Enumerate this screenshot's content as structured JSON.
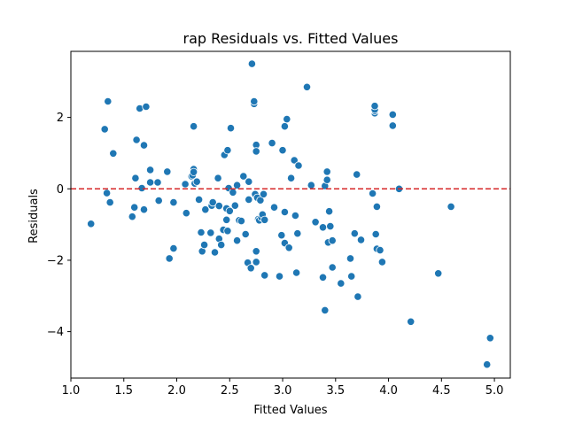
{
  "chart_data": {
    "type": "scatter",
    "title": "rap Residuals vs. Fitted Values",
    "xlabel": "Fitted Values",
    "ylabel": "Residuals",
    "xlim": [
      1.0,
      5.15
    ],
    "ylim": [
      -5.3,
      3.85
    ],
    "xticks": [
      "1.0",
      "1.5",
      "2.0",
      "2.5",
      "3.0",
      "3.5",
      "4.0",
      "4.5",
      "5.0"
    ],
    "yticks": [
      "−4",
      "−2",
      "0",
      "2"
    ],
    "xtick_values": [
      1.0,
      1.5,
      2.0,
      2.5,
      3.0,
      3.5,
      4.0,
      4.5,
      5.0
    ],
    "ytick_values": [
      -4,
      -2,
      0,
      2
    ],
    "reference_line": {
      "y": 0,
      "style": "dashed",
      "color": "#d62728"
    },
    "point_color": "#1f77b4",
    "grid": false,
    "points": [
      [
        1.19,
        -0.98
      ],
      [
        1.32,
        1.67
      ],
      [
        1.34,
        -0.12
      ],
      [
        1.35,
        2.45
      ],
      [
        1.37,
        -0.38
      ],
      [
        1.4,
        0.99
      ],
      [
        1.58,
        -0.78
      ],
      [
        1.6,
        -0.52
      ],
      [
        1.61,
        0.3
      ],
      [
        1.62,
        1.37
      ],
      [
        1.65,
        2.25
      ],
      [
        1.67,
        0.02
      ],
      [
        1.69,
        1.22
      ],
      [
        1.69,
        -0.58
      ],
      [
        1.71,
        2.3
      ],
      [
        1.75,
        0.18
      ],
      [
        1.75,
        0.53
      ],
      [
        1.82,
        0.18
      ],
      [
        1.83,
        -0.33
      ],
      [
        1.91,
        0.48
      ],
      [
        1.93,
        -1.95
      ],
      [
        1.97,
        -0.38
      ],
      [
        1.97,
        -1.67
      ],
      [
        2.08,
        0.13
      ],
      [
        2.09,
        -0.68
      ],
      [
        2.14,
        0.35
      ],
      [
        2.15,
        0.38
      ],
      [
        2.16,
        0.55
      ],
      [
        2.16,
        0.47
      ],
      [
        2.16,
        1.75
      ],
      [
        2.17,
        0.15
      ],
      [
        2.19,
        0.2
      ],
      [
        2.21,
        -0.3
      ],
      [
        2.23,
        -1.22
      ],
      [
        2.24,
        -1.75
      ],
      [
        2.26,
        -1.57
      ],
      [
        2.27,
        -0.58
      ],
      [
        2.32,
        -1.23
      ],
      [
        2.33,
        -0.47
      ],
      [
        2.34,
        -0.38
      ],
      [
        2.36,
        -1.78
      ],
      [
        2.39,
        0.3
      ],
      [
        2.4,
        -0.48
      ],
      [
        2.4,
        -1.4
      ],
      [
        2.42,
        -1.57
      ],
      [
        2.44,
        -1.15
      ],
      [
        2.45,
        0.95
      ],
      [
        2.47,
        -0.55
      ],
      [
        2.47,
        -0.87
      ],
      [
        2.48,
        -1.18
      ],
      [
        2.48,
        1.08
      ],
      [
        2.49,
        0.02
      ],
      [
        2.5,
        -0.62
      ],
      [
        2.51,
        1.7
      ],
      [
        2.53,
        -0.1
      ],
      [
        2.55,
        -0.47
      ],
      [
        2.57,
        -1.45
      ],
      [
        2.57,
        0.1
      ],
      [
        2.59,
        -0.88
      ],
      [
        2.61,
        -0.9
      ],
      [
        2.63,
        0.35
      ],
      [
        2.65,
        -1.27
      ],
      [
        2.67,
        -2.07
      ],
      [
        2.68,
        0.2
      ],
      [
        2.68,
        -0.3
      ],
      [
        2.7,
        -2.22
      ],
      [
        2.71,
        3.5
      ],
      [
        2.73,
        2.38
      ],
      [
        2.73,
        2.45
      ],
      [
        2.74,
        -0.15
      ],
      [
        2.75,
        1.23
      ],
      [
        2.75,
        1.05
      ],
      [
        2.75,
        -2.05
      ],
      [
        2.75,
        -1.75
      ],
      [
        2.76,
        -0.25
      ],
      [
        2.77,
        -0.85
      ],
      [
        2.78,
        -0.88
      ],
      [
        2.79,
        -0.32
      ],
      [
        2.8,
        -0.8
      ],
      [
        2.81,
        -0.72
      ],
      [
        2.82,
        -0.15
      ],
      [
        2.83,
        -2.42
      ],
      [
        2.83,
        -0.87
      ],
      [
        2.9,
        1.28
      ],
      [
        2.92,
        -0.52
      ],
      [
        2.97,
        -2.45
      ],
      [
        2.99,
        -1.3
      ],
      [
        3.0,
        1.08
      ],
      [
        3.02,
        1.75
      ],
      [
        3.02,
        -0.65
      ],
      [
        3.02,
        -1.52
      ],
      [
        3.04,
        1.95
      ],
      [
        3.06,
        -1.65
      ],
      [
        3.08,
        0.3
      ],
      [
        3.11,
        0.8
      ],
      [
        3.12,
        -0.75
      ],
      [
        3.13,
        -2.35
      ],
      [
        3.14,
        -1.25
      ],
      [
        3.15,
        0.65
      ],
      [
        3.23,
        2.85
      ],
      [
        3.27,
        0.1
      ],
      [
        3.31,
        -0.93
      ],
      [
        3.38,
        -1.08
      ],
      [
        3.38,
        -2.48
      ],
      [
        3.4,
        -3.4
      ],
      [
        3.4,
        0.08
      ],
      [
        3.42,
        0.25
      ],
      [
        3.42,
        0.48
      ],
      [
        3.43,
        -1.5
      ],
      [
        3.44,
        -0.63
      ],
      [
        3.45,
        -1.05
      ],
      [
        3.47,
        -1.45
      ],
      [
        3.47,
        -2.2
      ],
      [
        3.55,
        -2.65
      ],
      [
        3.64,
        -1.95
      ],
      [
        3.65,
        -2.45
      ],
      [
        3.68,
        -1.25
      ],
      [
        3.7,
        0.4
      ],
      [
        3.71,
        -3.02
      ],
      [
        3.74,
        -1.43
      ],
      [
        3.85,
        -0.13
      ],
      [
        3.87,
        2.12
      ],
      [
        3.87,
        2.18
      ],
      [
        3.87,
        2.22
      ],
      [
        3.87,
        2.32
      ],
      [
        3.88,
        -1.27
      ],
      [
        3.89,
        -0.5
      ],
      [
        3.89,
        -1.68
      ],
      [
        3.92,
        -1.72
      ],
      [
        3.94,
        -2.05
      ],
      [
        4.04,
        2.08
      ],
      [
        4.04,
        1.77
      ],
      [
        4.1,
        0.0
      ],
      [
        4.21,
        -3.72
      ],
      [
        4.47,
        -2.37
      ],
      [
        4.59,
        -0.5
      ],
      [
        4.93,
        -4.92
      ],
      [
        4.96,
        -4.18
      ]
    ]
  }
}
